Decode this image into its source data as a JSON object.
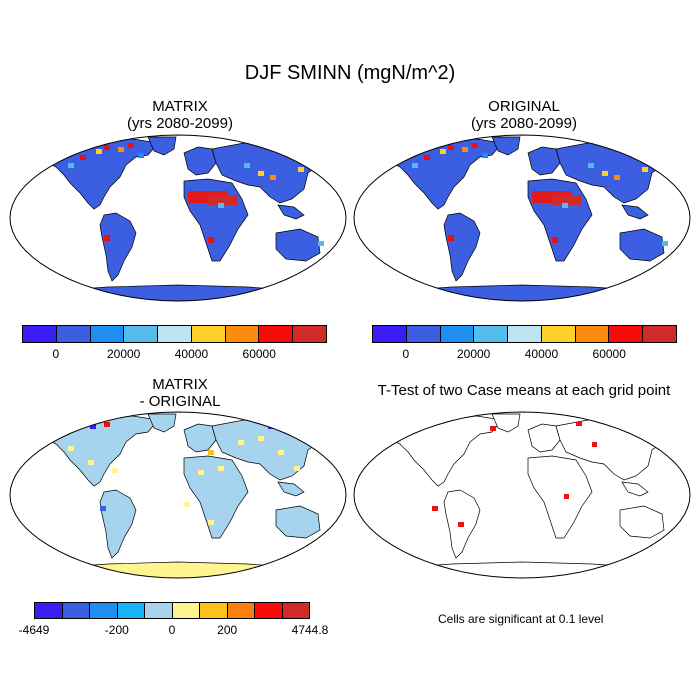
{
  "title": "DJF SMINN (mgN/m^2)",
  "panels": {
    "tl": {
      "title1": "MATRIX",
      "title2": "(yrs 2080-2099)"
    },
    "tr": {
      "title1": "ORIGINAL",
      "title2": "(yrs 2080-2099)"
    },
    "bl": {
      "title1": "MATRIX",
      "title2": "- ORIGINAL"
    },
    "br": {
      "title1": "T-Test of two Case means at each grid point"
    }
  },
  "colorbar_top": {
    "colors": [
      "#3a1cf5",
      "#3c5ee0",
      "#1e8ff0",
      "#55bdec",
      "#bfe3f2",
      "#fdd02a",
      "#fb8c10",
      "#f70a0a",
      "#d12a2a"
    ],
    "labels": [
      "0",
      "20000",
      "40000",
      "60000"
    ]
  },
  "colorbar_bottom": {
    "colors": [
      "#3a1cf5",
      "#3c5ee0",
      "#1e8ff0",
      "#16b4f5",
      "#a6d4ee",
      "#fff590",
      "#fdc21a",
      "#fb8010",
      "#f70a0a",
      "#d12a2a"
    ],
    "labels": [
      "-4649",
      "-200",
      "0",
      "200",
      "4744.8"
    ]
  },
  "note": "Cells are significant at 0.1 level",
  "map_colors": {
    "land_main": "#3c5ee0",
    "land_diff": "#a6d4ee",
    "antarctica_diff": "#fff590",
    "sig": "#ee1111"
  }
}
